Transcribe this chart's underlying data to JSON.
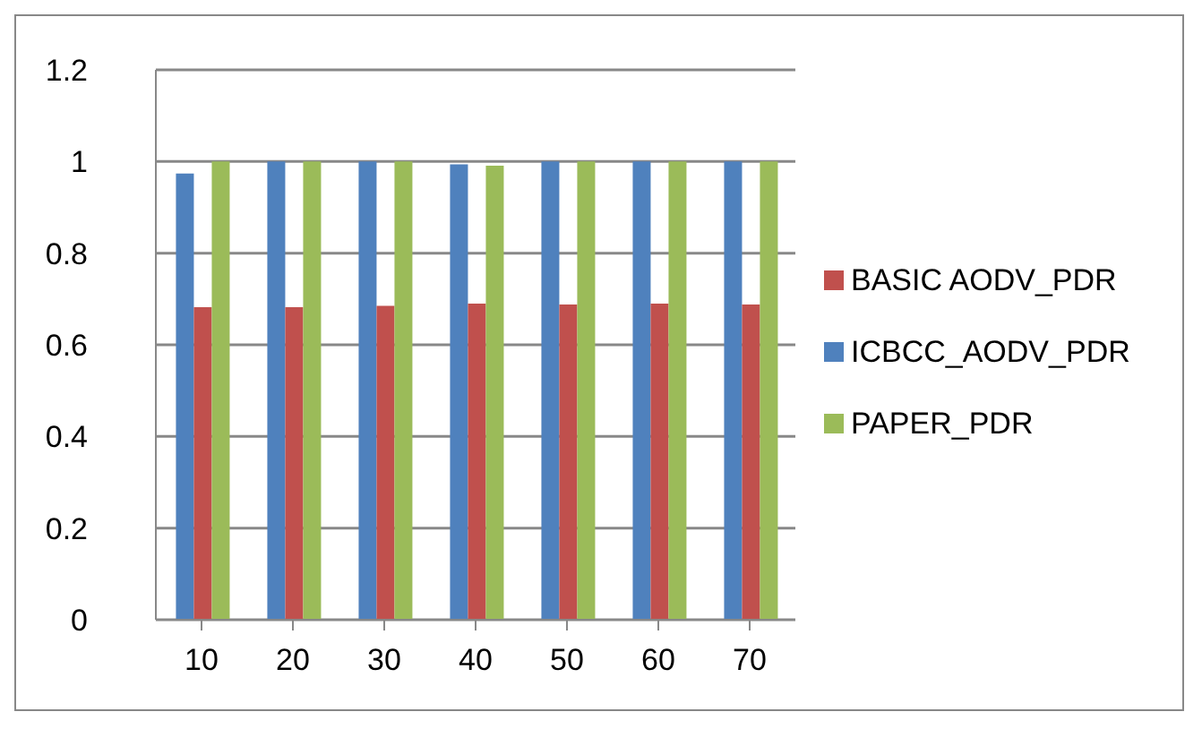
{
  "chart_data": {
    "type": "bar",
    "categories": [
      "10",
      "20",
      "30",
      "40",
      "50",
      "60",
      "70"
    ],
    "series": [
      {
        "name": "ICBCC_AODV_PDR",
        "color": "#4f81bd",
        "values": [
          0.974,
          1,
          1,
          0.994,
          1,
          1,
          1
        ]
      },
      {
        "name": "BASIC AODV_PDR",
        "color": "#c0504d",
        "values": [
          0.682,
          0.682,
          0.685,
          0.69,
          0.688,
          0.69,
          0.688
        ]
      },
      {
        "name": "PAPER_PDR",
        "color": "#9bbb59",
        "values": [
          1,
          1,
          1,
          0.991,
          1,
          1,
          1
        ]
      }
    ],
    "ylim": [
      0,
      1.2
    ],
    "yticks": [
      0,
      0.2,
      0.4,
      0.6,
      0.8,
      1,
      1.2
    ],
    "grid": "y",
    "legend": "right"
  }
}
